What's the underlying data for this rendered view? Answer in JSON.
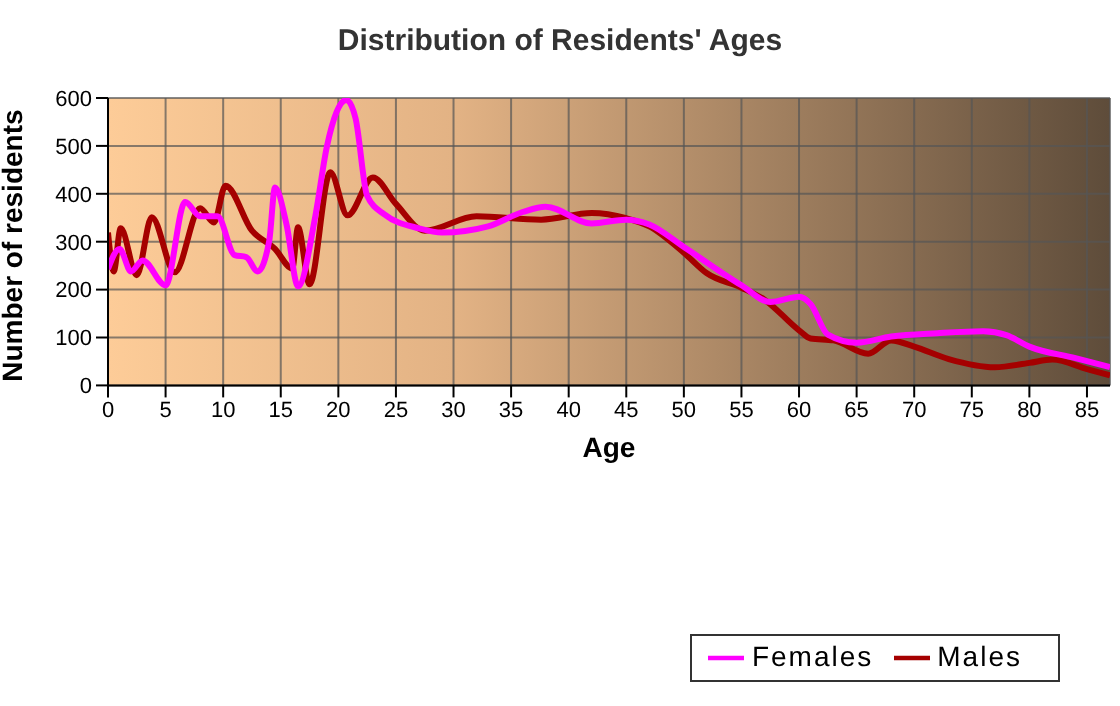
{
  "chart_data": {
    "type": "line",
    "title": "Distribution of Residents' Ages",
    "xlabel": "Age",
    "ylabel": "Number of residents",
    "xlim": [
      0,
      87
    ],
    "xticks": [
      0,
      5,
      10,
      15,
      20,
      25,
      30,
      35,
      40,
      45,
      50,
      55,
      60,
      65,
      70,
      75,
      80,
      85
    ],
    "ylim": [
      0,
      600
    ],
    "yticks": [
      0,
      100,
      200,
      300,
      400,
      500,
      600
    ],
    "grid": true,
    "legend": "bottom right",
    "marker": "none",
    "line_style": "solid",
    "series": [
      {
        "name": "Males",
        "color": "#a50000",
        "x": [
          0,
          0.5,
          1.1,
          2.5,
          3.8,
          5.8,
          8,
          9.2,
          10.2,
          12.5,
          14.5,
          16,
          16.5,
          17.5,
          19.3,
          20.8,
          23,
          25,
          27.5,
          32,
          37.6,
          42,
          45,
          47,
          50,
          52,
          55,
          57,
          60,
          61,
          63,
          66,
          68,
          70,
          73,
          77,
          80,
          82,
          85,
          87
        ],
        "values": [
          319,
          238,
          328,
          230,
          351,
          236,
          370,
          340,
          417,
          323,
          285,
          244,
          330,
          211,
          445,
          355,
          434,
          379,
          323,
          353,
          346,
          360,
          349,
          332,
          277,
          234,
          204,
          179,
          115,
          98,
          94,
          66,
          94,
          81,
          55,
          38,
          47,
          54,
          34,
          21
        ]
      },
      {
        "name": "Females",
        "color": "#ff00ff",
        "x": [
          0,
          1,
          2,
          3,
          5,
          6.7,
          8,
          9.5,
          11,
          12,
          13,
          14,
          14.5,
          15.5,
          16.5,
          18,
          19,
          20.7,
          21.5,
          22.5,
          24,
          27,
          29,
          33,
          36,
          38,
          42,
          45,
          47,
          50,
          55,
          57.5,
          60,
          61,
          62.5,
          65,
          68,
          72,
          76,
          78,
          80,
          84,
          87
        ],
        "values": [
          243,
          285,
          238,
          261,
          209,
          383,
          353,
          353,
          272,
          268,
          238,
          302,
          413,
          336,
          207,
          353,
          498,
          596,
          557,
          396,
          357,
          328,
          319,
          332,
          362,
          373,
          338,
          346,
          336,
          289,
          209,
          174,
          185,
          170,
          106,
          89,
          102,
          109,
          113,
          105,
          81,
          57,
          38
        ]
      }
    ]
  }
}
